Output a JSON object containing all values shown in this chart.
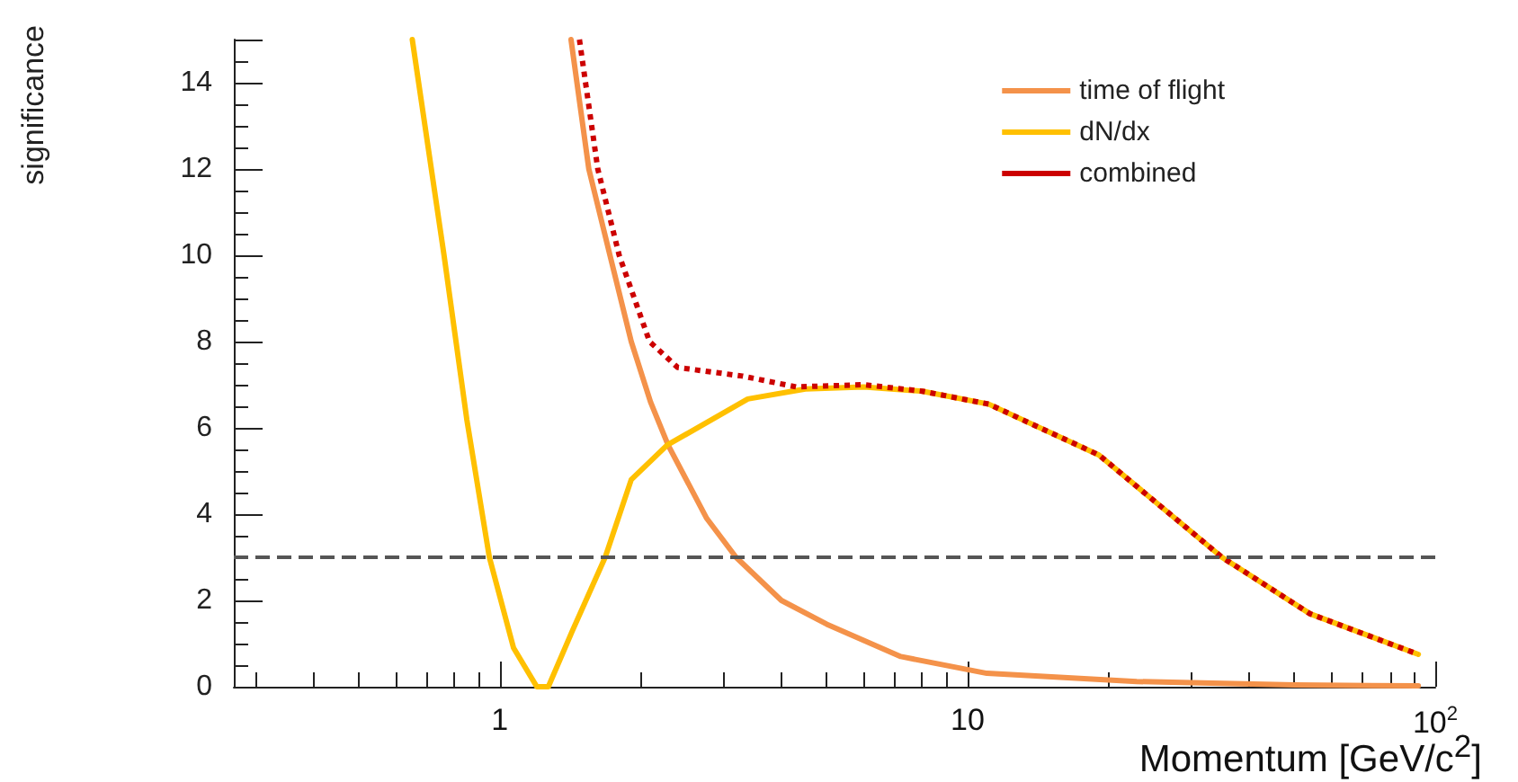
{
  "chart_data": {
    "type": "line",
    "xlabel": "Momentum [GeV/c$^{2}$]",
    "ylabel": "significance",
    "log": "x",
    "xlim": [
      0.27,
      100
    ],
    "xticks": [
      1,
      10,
      {
        "value": 100,
        "label": "10$^{2}$"
      }
    ],
    "ylim": [
      0,
      15
    ],
    "yticks": [
      0,
      2,
      4,
      6,
      8,
      10,
      12,
      14
    ],
    "grid": false,
    "legend": "top right",
    "marker": "none",
    "series": [
      {
        "name": "time of flight",
        "color": "#f4924a",
        "line_style": "solid",
        "x": [
          1.42,
          1.55,
          1.72,
          1.91,
          2.1,
          2.29,
          2.77,
          3.2,
          4.0,
          5.0,
          7.2,
          11,
          23,
          50,
          92
        ],
        "values": [
          15,
          12,
          10,
          8,
          6.6,
          5.6,
          3.9,
          3.0,
          2.0,
          1.45,
          0.7,
          0.31,
          0.12,
          0.04,
          0.02
        ]
      },
      {
        "name": "dN/dx",
        "color": "#ffc000",
        "line_style": "solid",
        "x": [
          0.65,
          0.76,
          0.85,
          0.95,
          1.07,
          1.2,
          1.27,
          1.43,
          1.68,
          1.91,
          2.28,
          3.39,
          4.5,
          6,
          8,
          11.1,
          19.1,
          35,
          54,
          92
        ],
        "values": [
          15,
          10,
          6.2,
          3,
          0.9,
          0,
          0,
          1.3,
          3,
          4.8,
          5.6,
          6.67,
          6.9,
          6.95,
          6.85,
          6.55,
          5.37,
          3.0,
          1.69,
          0.75
        ]
      },
      {
        "name": "combined",
        "color": "#cc0000",
        "line_style": "dotted",
        "x": [
          1.48,
          1.62,
          1.8,
          2.09,
          2.4,
          3.3,
          4.3,
          6,
          8,
          11.1,
          19.1,
          35,
          54,
          92
        ],
        "values": [
          15,
          12,
          10,
          8,
          7.4,
          7.2,
          6.95,
          7.0,
          6.85,
          6.55,
          5.37,
          3.0,
          1.69,
          0.75
        ]
      }
    ],
    "ref_lines": [
      {
        "axis": "y",
        "value": 3,
        "color": "#555555",
        "line_style": "dashed"
      }
    ]
  }
}
